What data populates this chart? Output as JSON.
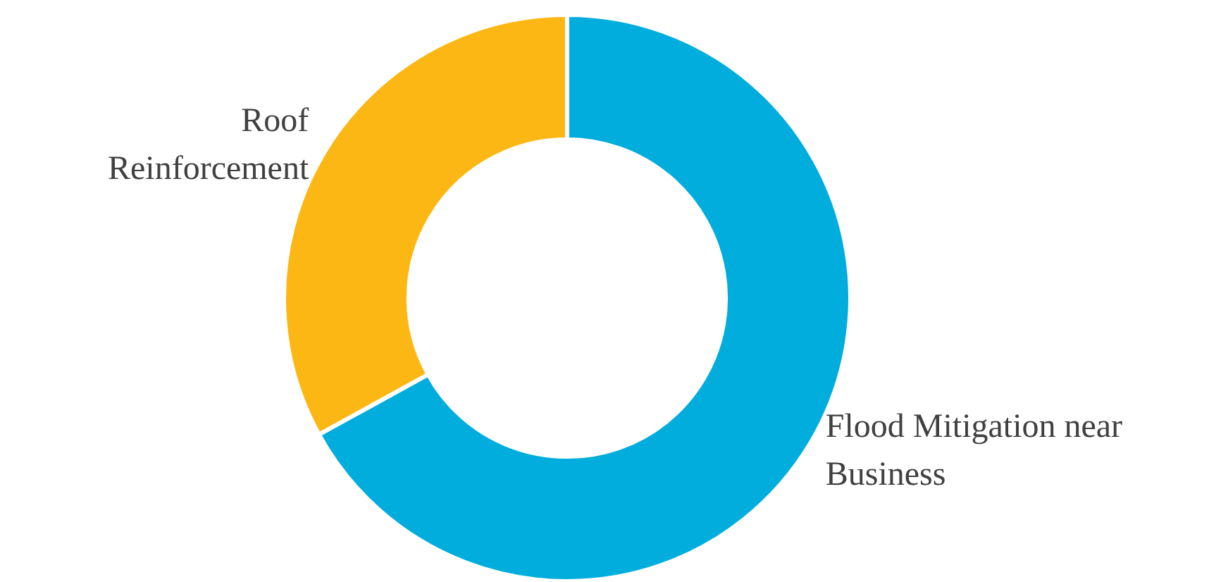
{
  "chart_data": {
    "type": "donut",
    "categories": [
      "Flood Mitigation near Business",
      "Roof Reinforcement"
    ],
    "values": [
      67,
      33
    ],
    "colors": [
      "#00addc",
      "#fdb714"
    ]
  }
}
